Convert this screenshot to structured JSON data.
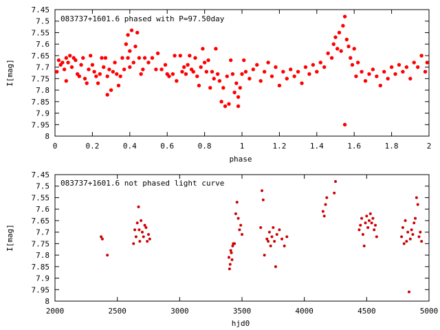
{
  "chart_data": [
    {
      "type": "scatter",
      "title": "083737+1601.6 phased with P=97.50day",
      "xlabel": "phase",
      "ylabel": "I[mag]",
      "xlim": [
        0,
        2
      ],
      "ylim": [
        7.45,
        8
      ],
      "y_inverted": true,
      "x_ticks": [
        "0",
        "0.2",
        "0.4",
        "0.6",
        "0.8",
        "1",
        "1.2",
        "1.4",
        "1.6",
        "1.8",
        "2"
      ],
      "y_ticks": [
        "7.45",
        "7.5",
        "7.55",
        "7.6",
        "7.65",
        "7.7",
        "7.75",
        "7.8",
        "7.85",
        "7.9",
        "7.95",
        "8"
      ],
      "marker_color": "#ff0000",
      "series": [
        {
          "points": [
            [
              0.01,
              7.72
            ],
            [
              0.02,
              7.67
            ],
            [
              0.03,
              7.69
            ],
            [
              0.04,
              7.68
            ],
            [
              0.05,
              7.71
            ],
            [
              0.06,
              7.66
            ],
            [
              0.06,
              7.76
            ],
            [
              0.07,
              7.68
            ],
            [
              0.08,
              7.65
            ],
            [
              0.09,
              7.7
            ],
            [
              0.1,
              7.66
            ],
            [
              0.11,
              7.67
            ],
            [
              0.12,
              7.73
            ],
            [
              0.13,
              7.74
            ],
            [
              0.14,
              7.69
            ],
            [
              0.15,
              7.66
            ],
            [
              0.16,
              7.75
            ],
            [
              0.17,
              7.77
            ],
            [
              0.18,
              7.71
            ],
            [
              0.19,
              7.65
            ],
            [
              0.2,
              7.69
            ],
            [
              0.21,
              7.72
            ],
            [
              0.22,
              7.74
            ],
            [
              0.23,
              7.77
            ],
            [
              0.24,
              7.73
            ],
            [
              0.25,
              7.66
            ],
            [
              0.26,
              7.7
            ],
            [
              0.27,
              7.66
            ],
            [
              0.28,
              7.74
            ],
            [
              0.28,
              7.82
            ],
            [
              0.29,
              7.71
            ],
            [
              0.3,
              7.8
            ],
            [
              0.31,
              7.72
            ],
            [
              0.32,
              7.68
            ],
            [
              0.33,
              7.73
            ],
            [
              0.34,
              7.78
            ],
            [
              0.35,
              7.74
            ],
            [
              0.36,
              7.66
            ],
            [
              0.37,
              7.71
            ],
            [
              0.38,
              7.6
            ],
            [
              0.39,
              7.56
            ],
            [
              0.39,
              7.66
            ],
            [
              0.4,
              7.63
            ],
            [
              0.4,
              7.7
            ],
            [
              0.41,
              7.54
            ],
            [
              0.42,
              7.68
            ],
            [
              0.43,
              7.61
            ],
            [
              0.44,
              7.55
            ],
            [
              0.45,
              7.66
            ],
            [
              0.46,
              7.73
            ],
            [
              0.47,
              7.71
            ],
            [
              0.48,
              7.66
            ],
            [
              0.5,
              7.68
            ],
            [
              0.52,
              7.66
            ],
            [
              0.54,
              7.71
            ],
            [
              0.55,
              7.64
            ],
            [
              0.57,
              7.71
            ],
            [
              0.59,
              7.69
            ],
            [
              0.6,
              7.73
            ],
            [
              0.61,
              7.74
            ],
            [
              0.63,
              7.73
            ],
            [
              0.64,
              7.65
            ],
            [
              0.65,
              7.76
            ],
            [
              0.67,
              7.65
            ],
            [
              0.68,
              7.72
            ],
            [
              0.69,
              7.7
            ],
            [
              0.7,
              7.73
            ],
            [
              0.71,
              7.69
            ],
            [
              0.72,
              7.65
            ],
            [
              0.73,
              7.71
            ],
            [
              0.74,
              7.72
            ],
            [
              0.75,
              7.66
            ],
            [
              0.76,
              7.74
            ],
            [
              0.77,
              7.78
            ],
            [
              0.78,
              7.7
            ],
            [
              0.79,
              7.62
            ],
            [
              0.8,
              7.68
            ],
            [
              0.81,
              7.72
            ],
            [
              0.82,
              7.67
            ],
            [
              0.83,
              7.79
            ],
            [
              0.84,
              7.72
            ],
            [
              0.85,
              7.75
            ],
            [
              0.86,
              7.62
            ],
            [
              0.87,
              7.73
            ],
            [
              0.88,
              7.76
            ],
            [
              0.89,
              7.85
            ],
            [
              0.9,
              7.79
            ],
            [
              0.91,
              7.87
            ],
            [
              0.92,
              7.74
            ],
            [
              0.93,
              7.86
            ],
            [
              0.94,
              7.67
            ],
            [
              0.95,
              7.73
            ],
            [
              0.96,
              7.81
            ],
            [
              0.97,
              7.77
            ],
            [
              0.98,
              7.83
            ],
            [
              0.98,
              7.87
            ],
            [
              0.99,
              7.79
            ],
            [
              1.0,
              7.73
            ],
            [
              1.01,
              7.67
            ],
            [
              1.02,
              7.72
            ],
            [
              1.04,
              7.75
            ],
            [
              1.06,
              7.71
            ],
            [
              1.08,
              7.69
            ],
            [
              1.1,
              7.76
            ],
            [
              1.12,
              7.72
            ],
            [
              1.14,
              7.68
            ],
            [
              1.16,
              7.74
            ],
            [
              1.18,
              7.7
            ],
            [
              1.2,
              7.78
            ],
            [
              1.22,
              7.72
            ],
            [
              1.24,
              7.75
            ],
            [
              1.26,
              7.71
            ],
            [
              1.28,
              7.74
            ],
            [
              1.3,
              7.72
            ],
            [
              1.32,
              7.77
            ],
            [
              1.34,
              7.7
            ],
            [
              1.36,
              7.73
            ],
            [
              1.38,
              7.69
            ],
            [
              1.4,
              7.72
            ],
            [
              1.42,
              7.68
            ],
            [
              1.44,
              7.7
            ],
            [
              1.46,
              7.64
            ],
            [
              1.48,
              7.66
            ],
            [
              1.49,
              7.6
            ],
            [
              1.5,
              7.57
            ],
            [
              1.51,
              7.62
            ],
            [
              1.52,
              7.55
            ],
            [
              1.53,
              7.63
            ],
            [
              1.54,
              7.52
            ],
            [
              1.55,
              7.48
            ],
            [
              1.55,
              7.95
            ],
            [
              1.56,
              7.58
            ],
            [
              1.57,
              7.61
            ],
            [
              1.58,
              7.66
            ],
            [
              1.59,
              7.69
            ],
            [
              1.6,
              7.62
            ],
            [
              1.61,
              7.74
            ],
            [
              1.62,
              7.68
            ],
            [
              1.64,
              7.72
            ],
            [
              1.66,
              7.76
            ],
            [
              1.68,
              7.73
            ],
            [
              1.7,
              7.71
            ],
            [
              1.72,
              7.74
            ],
            [
              1.74,
              7.78
            ],
            [
              1.76,
              7.72
            ],
            [
              1.78,
              7.75
            ],
            [
              1.8,
              7.7
            ],
            [
              1.82,
              7.73
            ],
            [
              1.84,
              7.69
            ],
            [
              1.86,
              7.72
            ],
            [
              1.88,
              7.7
            ],
            [
              1.9,
              7.75
            ],
            [
              1.92,
              7.68
            ],
            [
              1.94,
              7.7
            ],
            [
              1.96,
              7.65
            ],
            [
              1.98,
              7.72
            ],
            [
              1.99,
              7.68
            ]
          ]
        }
      ]
    },
    {
      "type": "scatter",
      "title": "083737+1601.6 not phased light curve",
      "xlabel": "hjd0",
      "ylabel": "I[mag]",
      "xlim": [
        2000,
        5000
      ],
      "ylim": [
        7.45,
        8
      ],
      "y_inverted": true,
      "x_ticks": [
        "2000",
        "2500",
        "3000",
        "3500",
        "4000",
        "4500",
        "5000"
      ],
      "y_ticks": [
        "7.45",
        "7.5",
        "7.55",
        "7.6",
        "7.65",
        "7.7",
        "7.75",
        "7.8",
        "7.85",
        "7.9",
        "7.95",
        "8"
      ],
      "marker_color": "#cc0000",
      "series": [
        {
          "points": [
            [
              2370,
              7.72
            ],
            [
              2380,
              7.73
            ],
            [
              2420,
              7.8
            ],
            [
              2630,
              7.75
            ],
            [
              2640,
              7.69
            ],
            [
              2650,
              7.72
            ],
            [
              2660,
              7.66
            ],
            [
              2670,
              7.59
            ],
            [
              2675,
              7.69
            ],
            [
              2680,
              7.74
            ],
            [
              2690,
              7.65
            ],
            [
              2700,
              7.7
            ],
            [
              2710,
              7.72
            ],
            [
              2720,
              7.67
            ],
            [
              2730,
              7.68
            ],
            [
              2740,
              7.74
            ],
            [
              2750,
              7.71
            ],
            [
              2760,
              7.73
            ],
            [
              3395,
              7.81
            ],
            [
              3400,
              7.86
            ],
            [
              3405,
              7.84
            ],
            [
              3410,
              7.78
            ],
            [
              3415,
              7.79
            ],
            [
              3420,
              7.82
            ],
            [
              3425,
              7.76
            ],
            [
              3430,
              7.75
            ],
            [
              3440,
              7.75
            ],
            [
              3450,
              7.62
            ],
            [
              3460,
              7.57
            ],
            [
              3470,
              7.64
            ],
            [
              3480,
              7.69
            ],
            [
              3490,
              7.67
            ],
            [
              3500,
              7.71
            ],
            [
              3650,
              7.68
            ],
            [
              3660,
              7.52
            ],
            [
              3670,
              7.56
            ],
            [
              3680,
              7.8
            ],
            [
              3700,
              7.73
            ],
            [
              3710,
              7.74
            ],
            [
              3720,
              7.7
            ],
            [
              3730,
              7.76
            ],
            [
              3740,
              7.72
            ],
            [
              3750,
              7.68
            ],
            [
              3760,
              7.74
            ],
            [
              3770,
              7.85
            ],
            [
              3780,
              7.71
            ],
            [
              3800,
              7.69
            ],
            [
              3820,
              7.73
            ],
            [
              3840,
              7.76
            ],
            [
              3860,
              7.72
            ],
            [
              4150,
              7.61
            ],
            [
              4160,
              7.63
            ],
            [
              4170,
              7.58
            ],
            [
              4180,
              7.55
            ],
            [
              4240,
              7.53
            ],
            [
              4250,
              7.48
            ],
            [
              4440,
              7.69
            ],
            [
              4450,
              7.67
            ],
            [
              4460,
              7.64
            ],
            [
              4470,
              7.71
            ],
            [
              4480,
              7.76
            ],
            [
              4490,
              7.66
            ],
            [
              4500,
              7.63
            ],
            [
              4510,
              7.68
            ],
            [
              4520,
              7.65
            ],
            [
              4530,
              7.62
            ],
            [
              4540,
              7.66
            ],
            [
              4550,
              7.64
            ],
            [
              4560,
              7.69
            ],
            [
              4570,
              7.67
            ],
            [
              4580,
              7.72
            ],
            [
              4780,
              7.72
            ],
            [
              4790,
              7.68
            ],
            [
              4800,
              7.75
            ],
            [
              4810,
              7.65
            ],
            [
              4820,
              7.74
            ],
            [
              4830,
              7.7
            ],
            [
              4840,
              7.96
            ],
            [
              4850,
              7.73
            ],
            [
              4860,
              7.69
            ],
            [
              4870,
              7.71
            ],
            [
              4880,
              7.66
            ],
            [
              4890,
              7.64
            ],
            [
              4900,
              7.55
            ],
            [
              4910,
              7.58
            ],
            [
              4920,
              7.72
            ],
            [
              4930,
              7.7
            ],
            [
              4940,
              7.74
            ]
          ]
        }
      ]
    }
  ]
}
